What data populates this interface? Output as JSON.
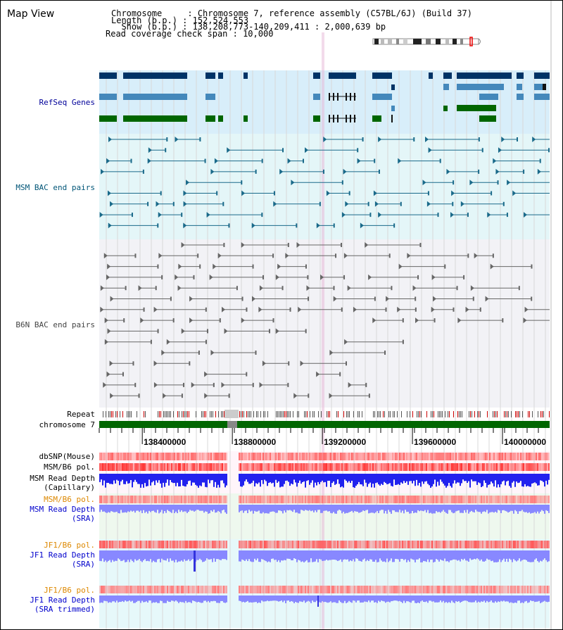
{
  "title": "Map View",
  "header": {
    "rows": [
      {
        "label": "Chromosome     :",
        "value": "Chromosome 7, reference assembly (C57BL/6J) (Build 37)"
      },
      {
        "label": "Length (b.p.) :",
        "value": "152,524,553"
      },
      {
        "label": "  Show (b.p.) :",
        "value": "138,208,773-140,209,411 : 2,000,639 bp"
      },
      {
        "label": "Read coverage check span :",
        "value": "10,000"
      }
    ]
  },
  "tracks": {
    "refseq": {
      "label": "RefSeq Genes",
      "color": "#000099"
    },
    "msm_bac": {
      "label": "MSM BAC end pairs",
      "color": "#005577"
    },
    "b6n_bac": {
      "label": "B6N BAC end pairs",
      "color": "#444444"
    },
    "repeat": {
      "label": "Repeat"
    },
    "chromosome": {
      "label": "chromosome 7"
    },
    "dbsnp": {
      "label": "dbSNP(Mouse)"
    },
    "msm_b6_pol": {
      "label": "MSM/B6 pol."
    },
    "msm_depth_cap": {
      "label": "MSM Read Depth\n(Capillary)"
    },
    "msm_b6_pol2": {
      "label": "MSM/B6 pol.",
      "color": "#dd8800"
    },
    "msm_depth_sra": {
      "label": "MSM Read Depth\n(SRA)",
      "color": "#0000cc"
    },
    "jf1_pol": {
      "label": "JF1/B6 pol.",
      "color": "#dd8800"
    },
    "jf1_depth_sra": {
      "label": "JF1 Read Depth\n(SRA)",
      "color": "#0000cc"
    },
    "jf1_pol2": {
      "label": "JF1/B6 pol.",
      "color": "#dd8800"
    },
    "jf1_depth_trim": {
      "label": "JF1 Read Depth\n(SRA trimmed)",
      "color": "#0000cc"
    }
  },
  "axis": {
    "ticks": [
      "138400000",
      "138800000",
      "139200000",
      "139600000",
      "140000000"
    ],
    "tick_values": [
      138400000,
      138800000,
      139200000,
      139600000,
      140000000
    ],
    "start": 138208773,
    "end": 140209411
  },
  "colors": {
    "gene_dark": "#003366",
    "gene_mid": "#4488bb",
    "gene_green": "#006600",
    "refseq_bg": "#d8eefa",
    "msm_bg": "#e4f6f8",
    "b6n_bg": "#f2f2f6",
    "chrom": "#006600",
    "snp": "#ff5555",
    "depth_cap": "#2222ee",
    "depth_sra": "#8888ff"
  }
}
